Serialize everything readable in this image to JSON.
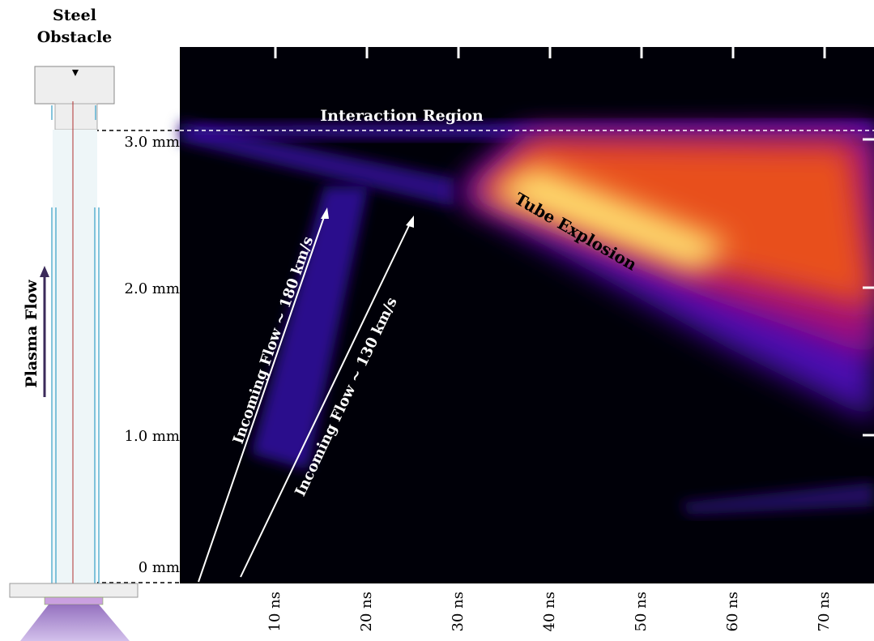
{
  "obstacle_label": [
    "Steel",
    "Obstacle"
  ],
  "flow_label": "Plasma Flow",
  "y_axis": {
    "ticks": [
      "3.0 mm",
      "2.0 mm",
      "1.0 mm",
      "0 mm"
    ]
  },
  "x_axis": {
    "ticks": [
      "10 ns",
      "20 ns",
      "30 ns",
      "40 ns",
      "50 ns",
      "60 ns",
      "70 ns"
    ]
  },
  "annotations": {
    "interaction_region": "Interaction Region",
    "tube_explosion": "Tube Explosion",
    "flow_fast": "Incoming Flow ~ 180 km/s",
    "flow_slow": "Incoming Flow ~ 130 km/s"
  }
}
